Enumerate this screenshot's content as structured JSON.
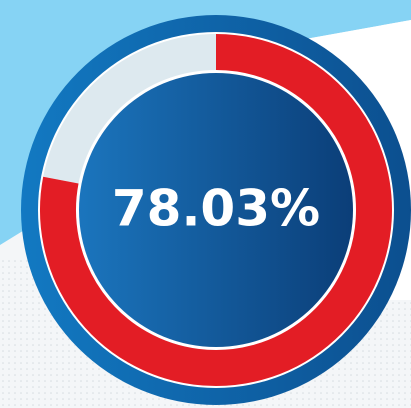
{
  "chart_data": {
    "type": "gauge",
    "values": [
      78.03
    ],
    "value_labels": [
      "78.03%"
    ],
    "color": "#e31d25",
    "track_color": "#dde9ef",
    "ylim": [
      0,
      100
    ]
  }
}
